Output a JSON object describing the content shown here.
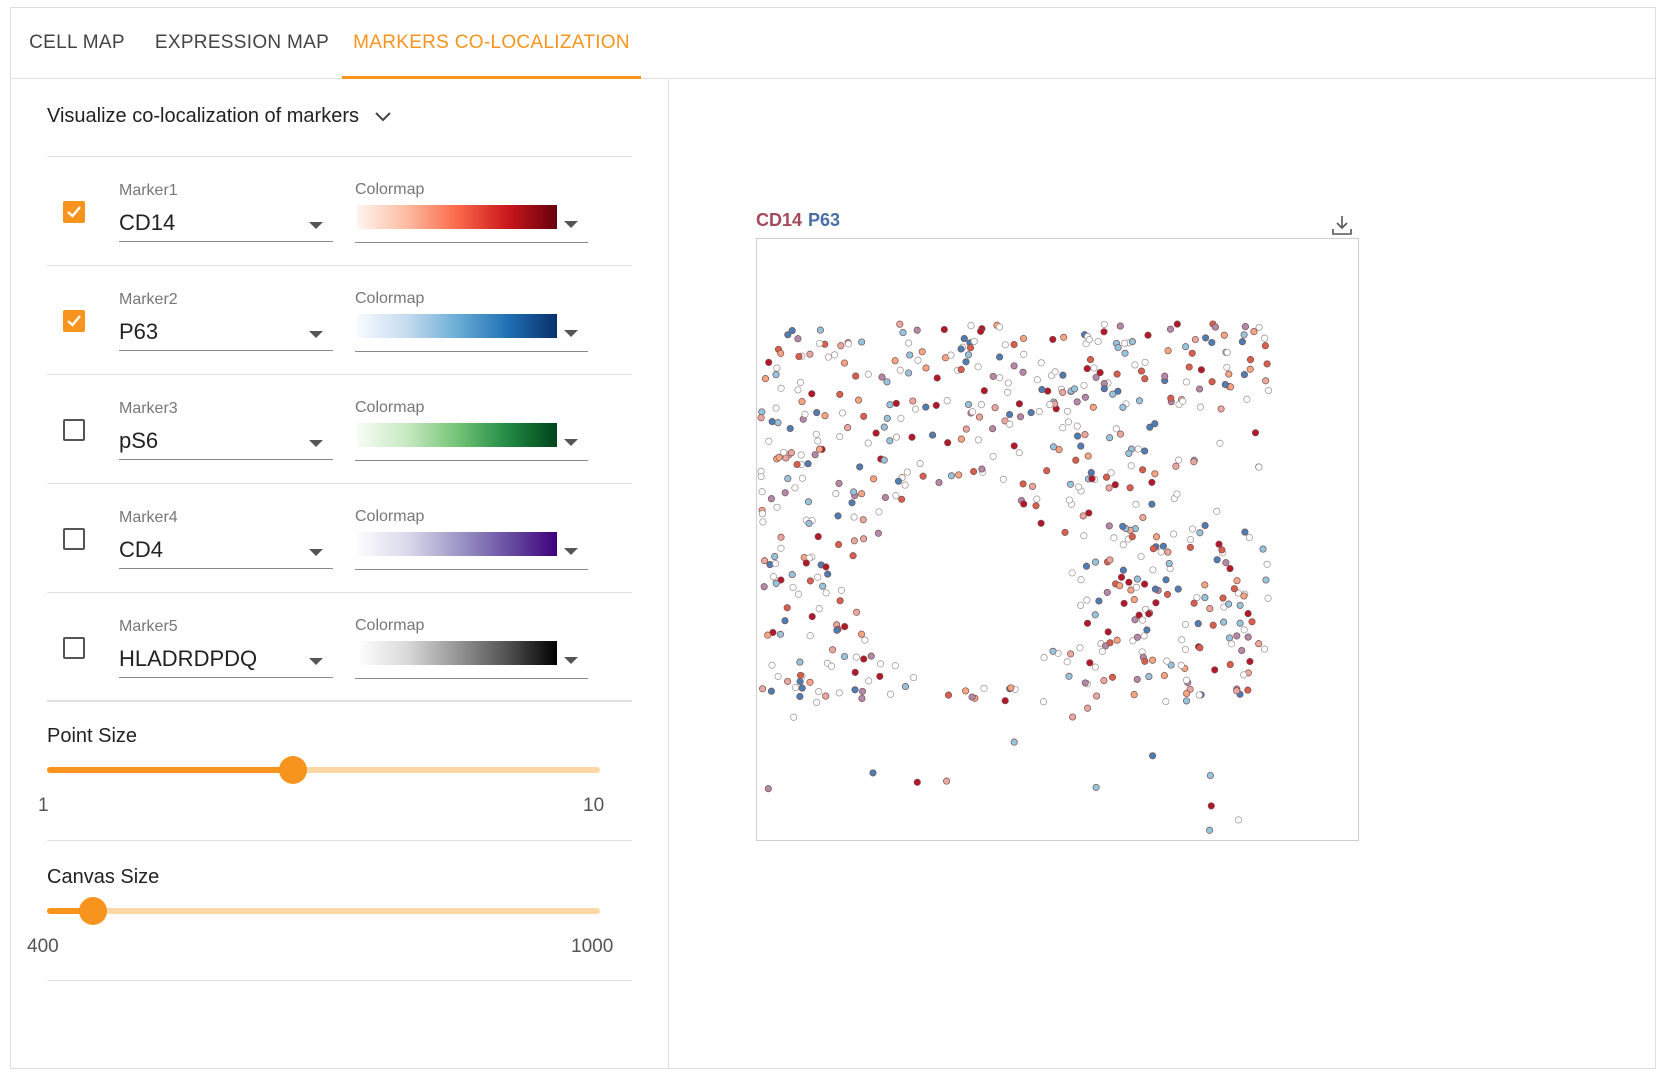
{
  "tabs": [
    {
      "label": "CELL MAP",
      "active": false
    },
    {
      "label": "EXPRESSION MAP",
      "active": false
    },
    {
      "label": "MARKERS CO-LOCALIZATION",
      "active": true
    }
  ],
  "panel": {
    "title": "Visualize co-localization of markers",
    "markers": [
      {
        "label": "Marker1",
        "value": "CD14",
        "checked": true,
        "colormap_label": "Colormap",
        "colormap": "reds"
      },
      {
        "label": "Marker2",
        "value": "P63",
        "checked": true,
        "colormap_label": "Colormap",
        "colormap": "blues"
      },
      {
        "label": "Marker3",
        "value": "pS6",
        "checked": false,
        "colormap_label": "Colormap",
        "colormap": "greens"
      },
      {
        "label": "Marker4",
        "value": "CD4",
        "checked": false,
        "colormap_label": "Colormap",
        "colormap": "purples"
      },
      {
        "label": "Marker5",
        "value": "HLADRDPDQ",
        "checked": false,
        "colormap_label": "Colormap",
        "colormap": "greys"
      }
    ],
    "point_size": {
      "title": "Point Size",
      "min": 1,
      "max": 10,
      "min_label": "1",
      "max_label": "10",
      "value": 5.0
    },
    "canvas_size": {
      "title": "Canvas Size",
      "min": 400,
      "max": 1000,
      "min_label": "400",
      "max_label": "1000",
      "value": 450
    }
  },
  "plot": {
    "legend": [
      "CD14",
      "P63"
    ],
    "download_icon": "download-icon"
  },
  "colors": {
    "accent": "#f7941d",
    "accent_light": "#fdd8a5",
    "marker1_legend": "#a34a5c",
    "marker2_legend": "#4a6fa5"
  }
}
